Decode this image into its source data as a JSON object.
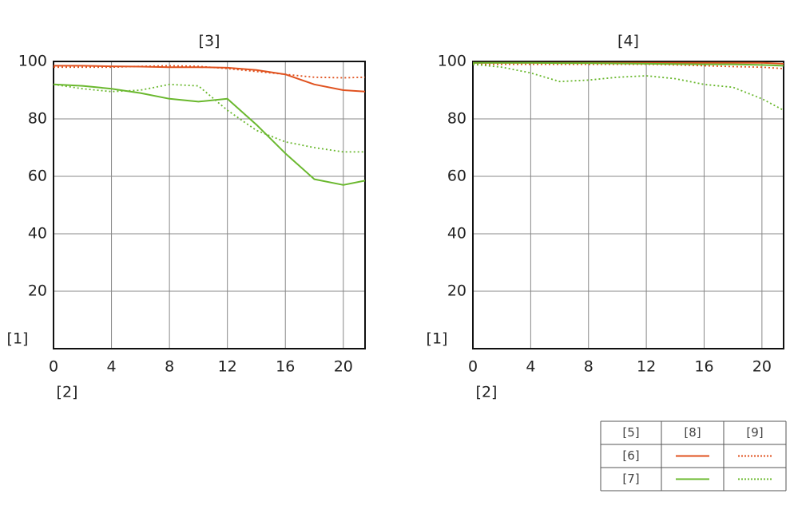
{
  "chart_data": [
    {
      "type": "line",
      "title": "[3]",
      "y_label": "[1]",
      "x_label": "[2]",
      "x": [
        0,
        2,
        4,
        6,
        8,
        10,
        12,
        14,
        16,
        18,
        20,
        21.5
      ],
      "xlim": [
        0,
        21.5
      ],
      "ylim": [
        0,
        100
      ],
      "xticks": [
        0,
        4,
        8,
        12,
        16,
        20
      ],
      "yticks": [
        20,
        40,
        60,
        80,
        100
      ],
      "grid": true,
      "series": [
        {
          "color": "#e0521f",
          "dash": "solid",
          "values": [
            98.5,
            98.5,
            98.3,
            98.2,
            98,
            98,
            97.8,
            97,
            95.5,
            92,
            90,
            89.5
          ]
        },
        {
          "color": "#e0521f",
          "dash": "dotted",
          "values": [
            98,
            98,
            98,
            98.3,
            98.5,
            98.3,
            97.5,
            96.5,
            95.5,
            94.5,
            94.3,
            94.5
          ]
        },
        {
          "color": "#6ab82e",
          "dash": "solid",
          "values": [
            92,
            91.5,
            90.5,
            89,
            87,
            86,
            87,
            78,
            68,
            59,
            57,
            58.5
          ]
        },
        {
          "color": "#6ab82e",
          "dash": "dotted",
          "values": [
            92,
            90.5,
            89.5,
            90,
            92,
            91.5,
            83,
            76,
            72,
            70,
            68.5,
            68.5
          ]
        }
      ]
    },
    {
      "type": "line",
      "title": "[4]",
      "y_label": "[1]",
      "x_label": "[2]",
      "x": [
        0,
        2,
        4,
        6,
        8,
        10,
        12,
        14,
        16,
        18,
        20,
        21.5
      ],
      "xlim": [
        0,
        21.5
      ],
      "ylim": [
        0,
        100
      ],
      "xticks": [
        0,
        4,
        8,
        12,
        16,
        20
      ],
      "yticks": [
        20,
        40,
        60,
        80,
        100
      ],
      "grid": true,
      "series": [
        {
          "color": "#e0521f",
          "dash": "solid",
          "values": [
            99.5,
            99.5,
            99.5,
            99.5,
            99.5,
            99.5,
            99.5,
            99.5,
            99.5,
            99.5,
            99.5,
            99.2
          ]
        },
        {
          "color": "#e0521f",
          "dash": "dotted",
          "values": [
            99,
            99,
            99,
            99,
            99,
            99,
            99,
            98.8,
            98.5,
            98.2,
            98,
            97.5
          ]
        },
        {
          "color": "#6ab82e",
          "dash": "solid",
          "values": [
            99.5,
            99.5,
            99.5,
            99.4,
            99.4,
            99.3,
            99.2,
            99.1,
            99,
            99,
            98.8,
            98.5
          ]
        },
        {
          "color": "#6ab82e",
          "dash": "dotted",
          "values": [
            99,
            98,
            96,
            93,
            93.5,
            94.5,
            95,
            94,
            92,
            91,
            87,
            83
          ]
        }
      ]
    }
  ],
  "legend": {
    "header": [
      "[5]",
      "[8]",
      "[9]"
    ],
    "rows": [
      "[6]",
      "[7]"
    ]
  }
}
